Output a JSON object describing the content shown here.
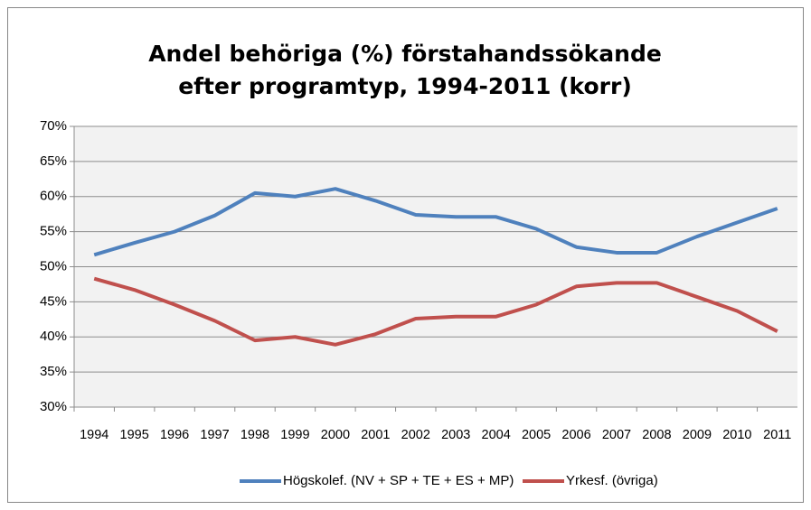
{
  "chart_data": {
    "type": "line",
    "title": "Andel behöriga (%) förstahandssökande efter programtyp, 1994-2011 (korr)",
    "categories": [
      "1994",
      "1995",
      "1996",
      "1997",
      "1998",
      "1999",
      "2000",
      "2001",
      "2002",
      "2003",
      "2004",
      "2005",
      "2006",
      "2007",
      "2008",
      "2009",
      "2010",
      "2011"
    ],
    "series": [
      {
        "name": "Högskolef. (NV + SP + TE + ES + MP)",
        "color": "#4f81bd",
        "values": [
          51.7,
          53.4,
          55.0,
          57.3,
          60.5,
          60.0,
          61.1,
          59.4,
          57.4,
          57.1,
          57.1,
          55.4,
          52.8,
          52.0,
          52.0,
          54.3,
          56.3,
          58.3
        ]
      },
      {
        "name": "Yrkesf. (övriga)",
        "color": "#c0504d",
        "values": [
          48.3,
          46.7,
          44.6,
          42.3,
          39.5,
          40.0,
          38.9,
          40.4,
          42.6,
          42.9,
          42.9,
          44.6,
          47.2,
          47.7,
          47.7,
          45.7,
          43.7,
          40.8
        ]
      }
    ],
    "ylim": [
      30,
      70
    ],
    "yticks": [
      {
        "value": 30,
        "label": "30%"
      },
      {
        "value": 35,
        "label": "35%"
      },
      {
        "value": 40,
        "label": "40%"
      },
      {
        "value": 45,
        "label": "45%"
      },
      {
        "value": 50,
        "label": "50%"
      },
      {
        "value": 55,
        "label": "55%"
      },
      {
        "value": 60,
        "label": "60%"
      },
      {
        "value": 65,
        "label": "65%"
      },
      {
        "value": 70,
        "label": "70%"
      }
    ],
    "grid": true,
    "legend": "bottom"
  }
}
